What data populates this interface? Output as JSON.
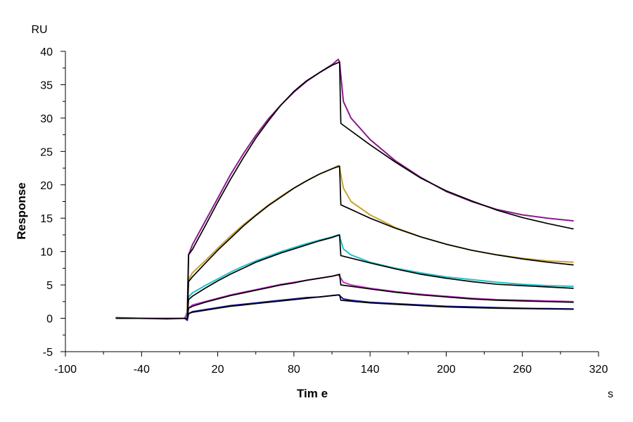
{
  "chart_data": {
    "type": "line",
    "title": "",
    "xlabel": "Tim e",
    "ylabel": "Response",
    "x_unit": "s",
    "y_unit": "RU",
    "xlim": [
      -100,
      320
    ],
    "ylim": [
      -5,
      40
    ],
    "x_ticks": [
      -100,
      -40,
      20,
      80,
      140,
      200,
      260,
      320
    ],
    "y_ticks": [
      -5,
      0,
      5,
      10,
      15,
      20,
      25,
      30,
      35,
      40
    ],
    "grid": false,
    "legend": "none",
    "series": [
      {
        "color": "#8b1a8b",
        "points": [
          [
            -60,
            0.1
          ],
          [
            -40,
            0.0
          ],
          [
            -20,
            -0.1
          ],
          [
            -6,
            0.0
          ],
          [
            -4,
            1.0
          ],
          [
            -3,
            9.5
          ],
          [
            0,
            11.0
          ],
          [
            10,
            14.5
          ],
          [
            20,
            18.0
          ],
          [
            30,
            21.5
          ],
          [
            40,
            24.6
          ],
          [
            50,
            27.4
          ],
          [
            60,
            29.9
          ],
          [
            70,
            32.0
          ],
          [
            80,
            33.9
          ],
          [
            90,
            35.5
          ],
          [
            100,
            36.8
          ],
          [
            110,
            38.0
          ],
          [
            115,
            38.8
          ],
          [
            116,
            38.4
          ],
          [
            119,
            32.5
          ],
          [
            125,
            30.0
          ],
          [
            140,
            26.8
          ],
          [
            160,
            23.6
          ],
          [
            180,
            21.1
          ],
          [
            200,
            19.0
          ],
          [
            220,
            17.5
          ],
          [
            240,
            16.3
          ],
          [
            260,
            15.5
          ],
          [
            280,
            15.0
          ],
          [
            300,
            14.6
          ]
        ]
      },
      {
        "color": "#c8a430",
        "points": [
          [
            -6,
            0.0
          ],
          [
            -4,
            1.0
          ],
          [
            -3,
            5.8
          ],
          [
            0,
            6.8
          ],
          [
            10,
            8.6
          ],
          [
            20,
            10.5
          ],
          [
            30,
            12.3
          ],
          [
            40,
            14.0
          ],
          [
            50,
            15.5
          ],
          [
            60,
            17.0
          ],
          [
            70,
            18.3
          ],
          [
            80,
            19.5
          ],
          [
            90,
            20.6
          ],
          [
            100,
            21.6
          ],
          [
            110,
            22.4
          ],
          [
            115,
            22.9
          ],
          [
            116,
            22.6
          ],
          [
            119,
            19.5
          ],
          [
            125,
            17.5
          ],
          [
            140,
            15.5
          ],
          [
            160,
            13.6
          ],
          [
            180,
            12.2
          ],
          [
            200,
            11.1
          ],
          [
            220,
            10.2
          ],
          [
            240,
            9.5
          ],
          [
            260,
            9.0
          ],
          [
            280,
            8.6
          ],
          [
            300,
            8.4
          ]
        ]
      },
      {
        "color": "#1ec3c8",
        "points": [
          [
            -6,
            0.0
          ],
          [
            -4,
            0.8
          ],
          [
            -3,
            3.2
          ],
          [
            0,
            3.8
          ],
          [
            10,
            4.9
          ],
          [
            20,
            5.9
          ],
          [
            30,
            6.9
          ],
          [
            40,
            7.8
          ],
          [
            50,
            8.6
          ],
          [
            60,
            9.3
          ],
          [
            70,
            10.0
          ],
          [
            80,
            10.6
          ],
          [
            90,
            11.2
          ],
          [
            100,
            11.7
          ],
          [
            110,
            12.2
          ],
          [
            115,
            12.5
          ],
          [
            116,
            12.3
          ],
          [
            119,
            10.4
          ],
          [
            125,
            9.5
          ],
          [
            140,
            8.4
          ],
          [
            160,
            7.5
          ],
          [
            180,
            6.8
          ],
          [
            200,
            6.2
          ],
          [
            220,
            5.8
          ],
          [
            240,
            5.4
          ],
          [
            260,
            5.1
          ],
          [
            280,
            4.9
          ],
          [
            300,
            4.8
          ]
        ]
      },
      {
        "color": "#c832c8",
        "points": [
          [
            -6,
            0.0
          ],
          [
            -4,
            0.6
          ],
          [
            -3,
            1.5
          ],
          [
            0,
            2.0
          ],
          [
            10,
            2.5
          ],
          [
            20,
            3.0
          ],
          [
            30,
            3.5
          ],
          [
            40,
            3.9
          ],
          [
            50,
            4.3
          ],
          [
            60,
            4.7
          ],
          [
            70,
            5.1
          ],
          [
            80,
            5.4
          ],
          [
            90,
            5.7
          ],
          [
            100,
            6.0
          ],
          [
            110,
            6.3
          ],
          [
            115,
            6.5
          ],
          [
            116,
            6.3
          ],
          [
            119,
            5.4
          ],
          [
            125,
            5.0
          ],
          [
            140,
            4.5
          ],
          [
            160,
            4.0
          ],
          [
            180,
            3.6
          ],
          [
            200,
            3.3
          ],
          [
            220,
            3.0
          ],
          [
            240,
            2.8
          ],
          [
            260,
            2.7
          ],
          [
            280,
            2.6
          ],
          [
            300,
            2.5
          ]
        ]
      },
      {
        "color": "#1a1aa0",
        "points": [
          [
            -6,
            0.0
          ],
          [
            -4,
            -0.3
          ],
          [
            -3,
            0.7
          ],
          [
            0,
            1.0
          ],
          [
            10,
            1.3
          ],
          [
            20,
            1.6
          ],
          [
            30,
            1.9
          ],
          [
            40,
            2.1
          ],
          [
            50,
            2.3
          ],
          [
            60,
            2.5
          ],
          [
            70,
            2.7
          ],
          [
            80,
            2.9
          ],
          [
            90,
            3.1
          ],
          [
            100,
            3.2
          ],
          [
            110,
            3.4
          ],
          [
            115,
            3.5
          ],
          [
            116,
            3.4
          ],
          [
            119,
            2.9
          ],
          [
            125,
            2.7
          ],
          [
            140,
            2.4
          ],
          [
            160,
            2.2
          ],
          [
            180,
            2.0
          ],
          [
            200,
            1.8
          ],
          [
            220,
            1.7
          ],
          [
            240,
            1.6
          ],
          [
            260,
            1.5
          ],
          [
            280,
            1.45
          ],
          [
            300,
            1.4
          ]
        ]
      },
      {
        "color": "#000000",
        "points": [
          [
            -60,
            0.0
          ],
          [
            -4,
            0.0
          ],
          [
            -3,
            9.5
          ],
          [
            0,
            10.3
          ],
          [
            10,
            13.8
          ],
          [
            20,
            17.4
          ],
          [
            30,
            20.8
          ],
          [
            40,
            24.0
          ],
          [
            50,
            27.0
          ],
          [
            60,
            29.6
          ],
          [
            70,
            32.0
          ],
          [
            80,
            34.0
          ],
          [
            90,
            35.6
          ],
          [
            100,
            36.8
          ],
          [
            110,
            37.9
          ],
          [
            116,
            38.4
          ],
          [
            117,
            29.2
          ],
          [
            140,
            26.0
          ],
          [
            160,
            23.4
          ],
          [
            180,
            21.0
          ],
          [
            200,
            19.1
          ],
          [
            220,
            17.6
          ],
          [
            240,
            16.2
          ],
          [
            260,
            15.1
          ],
          [
            280,
            14.2
          ],
          [
            300,
            13.4
          ]
        ]
      },
      {
        "color": "#000000",
        "points": [
          [
            -4,
            0.0
          ],
          [
            -3,
            5.5
          ],
          [
            0,
            6.2
          ],
          [
            10,
            8.2
          ],
          [
            20,
            10.2
          ],
          [
            30,
            12.0
          ],
          [
            40,
            13.8
          ],
          [
            50,
            15.4
          ],
          [
            60,
            16.9
          ],
          [
            70,
            18.2
          ],
          [
            80,
            19.5
          ],
          [
            90,
            20.6
          ],
          [
            100,
            21.6
          ],
          [
            110,
            22.4
          ],
          [
            116,
            22.8
          ],
          [
            117,
            17.0
          ],
          [
            140,
            15.0
          ],
          [
            160,
            13.5
          ],
          [
            180,
            12.2
          ],
          [
            200,
            11.1
          ],
          [
            220,
            10.2
          ],
          [
            240,
            9.5
          ],
          [
            260,
            8.9
          ],
          [
            280,
            8.4
          ],
          [
            300,
            8.0
          ]
        ]
      },
      {
        "color": "#000000",
        "points": [
          [
            -4,
            0.0
          ],
          [
            -3,
            2.8
          ],
          [
            0,
            3.3
          ],
          [
            10,
            4.5
          ],
          [
            20,
            5.6
          ],
          [
            30,
            6.6
          ],
          [
            40,
            7.5
          ],
          [
            50,
            8.4
          ],
          [
            60,
            9.1
          ],
          [
            70,
            9.8
          ],
          [
            80,
            10.4
          ],
          [
            90,
            11.0
          ],
          [
            100,
            11.6
          ],
          [
            110,
            12.1
          ],
          [
            116,
            12.5
          ],
          [
            117,
            9.4
          ],
          [
            140,
            8.3
          ],
          [
            160,
            7.4
          ],
          [
            180,
            6.6
          ],
          [
            200,
            6.0
          ],
          [
            220,
            5.5
          ],
          [
            240,
            5.1
          ],
          [
            260,
            4.9
          ],
          [
            280,
            4.7
          ],
          [
            300,
            4.5
          ]
        ]
      },
      {
        "color": "#000000",
        "points": [
          [
            -4,
            0.0
          ],
          [
            -3,
            1.5
          ],
          [
            0,
            1.8
          ],
          [
            10,
            2.4
          ],
          [
            20,
            2.9
          ],
          [
            30,
            3.4
          ],
          [
            40,
            3.8
          ],
          [
            50,
            4.2
          ],
          [
            60,
            4.6
          ],
          [
            70,
            5.0
          ],
          [
            80,
            5.3
          ],
          [
            90,
            5.7
          ],
          [
            100,
            6.0
          ],
          [
            110,
            6.3
          ],
          [
            116,
            6.6
          ],
          [
            117,
            5.0
          ],
          [
            140,
            4.4
          ],
          [
            160,
            3.9
          ],
          [
            180,
            3.5
          ],
          [
            200,
            3.2
          ],
          [
            220,
            2.9
          ],
          [
            240,
            2.7
          ],
          [
            260,
            2.6
          ],
          [
            280,
            2.5
          ],
          [
            300,
            2.4
          ]
        ]
      },
      {
        "color": "#000000",
        "points": [
          [
            -4,
            0.0
          ],
          [
            -3,
            0.7
          ],
          [
            0,
            0.9
          ],
          [
            10,
            1.2
          ],
          [
            20,
            1.5
          ],
          [
            30,
            1.8
          ],
          [
            40,
            2.0
          ],
          [
            50,
            2.2
          ],
          [
            60,
            2.4
          ],
          [
            70,
            2.6
          ],
          [
            80,
            2.8
          ],
          [
            90,
            3.0
          ],
          [
            100,
            3.2
          ],
          [
            110,
            3.4
          ],
          [
            116,
            3.5
          ],
          [
            117,
            2.7
          ],
          [
            140,
            2.3
          ],
          [
            160,
            2.1
          ],
          [
            180,
            1.9
          ],
          [
            200,
            1.7
          ],
          [
            220,
            1.6
          ],
          [
            240,
            1.5
          ],
          [
            260,
            1.45
          ],
          [
            280,
            1.4
          ],
          [
            300,
            1.35
          ]
        ]
      }
    ]
  }
}
